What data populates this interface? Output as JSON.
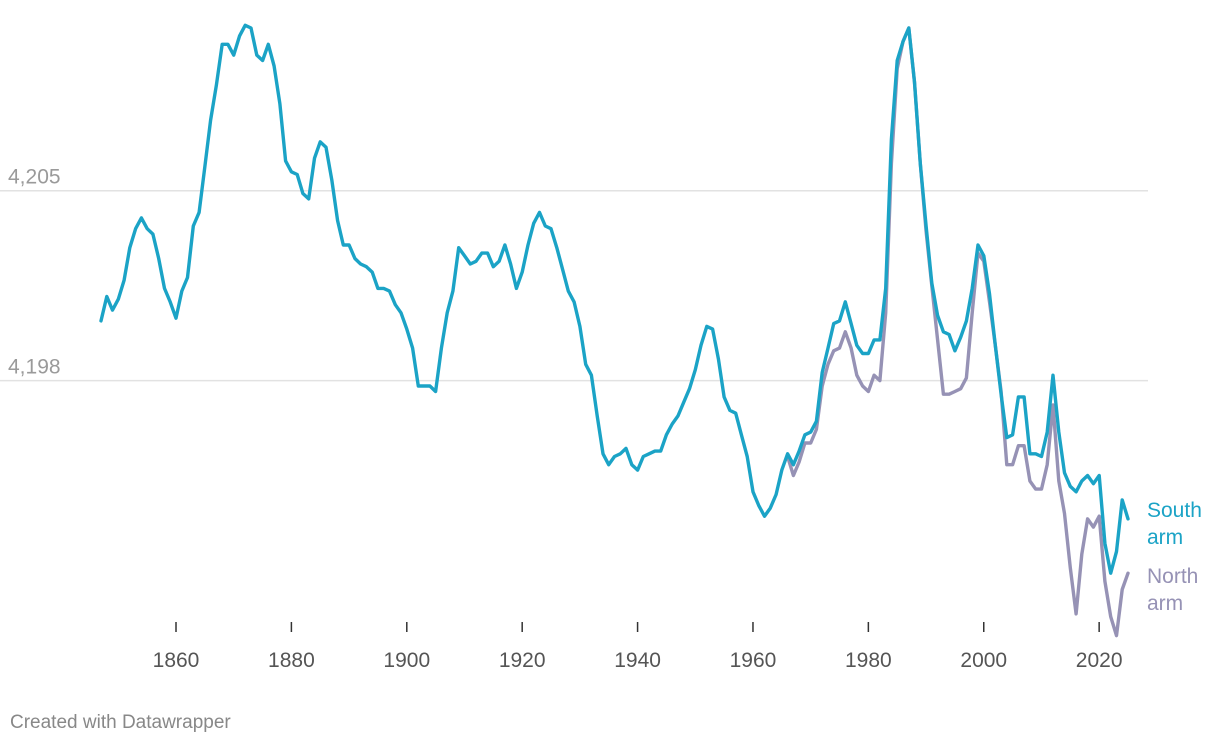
{
  "chart_data": {
    "type": "line",
    "title": "",
    "xlabel": "",
    "ylabel": "",
    "xlim": [
      1847,
      2025
    ],
    "ylim": [
      4189.1,
      4211.0
    ],
    "x_ticks": [
      1860,
      1880,
      1900,
      1920,
      1940,
      1960,
      1980,
      2000,
      2020
    ],
    "y_ticks": [
      4198,
      4205
    ],
    "y_tick_labels": [
      "4,198",
      "4,205"
    ],
    "grid": true,
    "legend": "direct labels at line ends",
    "series": [
      {
        "name": "North arm",
        "label_lines": [
          "North",
          "arm"
        ],
        "color": "#9692b5",
        "points": [
          [
            1966,
            4195.2
          ],
          [
            1967,
            4194.5
          ],
          [
            1968,
            4195.0
          ],
          [
            1969,
            4195.7
          ],
          [
            1970,
            4195.7
          ],
          [
            1971,
            4196.2
          ],
          [
            1972,
            4197.8
          ],
          [
            1973,
            4198.6
          ],
          [
            1974,
            4199.1
          ],
          [
            1975,
            4199.2
          ],
          [
            1976,
            4199.8
          ],
          [
            1977,
            4199.2
          ],
          [
            1978,
            4198.2
          ],
          [
            1979,
            4197.8
          ],
          [
            1980,
            4197.6
          ],
          [
            1981,
            4198.2
          ],
          [
            1982,
            4198.0
          ],
          [
            1983,
            4200.5
          ],
          [
            1984,
            4206.0
          ],
          [
            1985,
            4209.5
          ],
          [
            1986,
            4210.5
          ],
          [
            1987,
            4211.0
          ],
          [
            1988,
            4209.0
          ],
          [
            1989,
            4206.0
          ],
          [
            1990,
            4203.5
          ],
          [
            1991,
            4201.5
          ],
          [
            1992,
            4199.5
          ],
          [
            1993,
            4197.5
          ],
          [
            1994,
            4197.5
          ],
          [
            1995,
            4197.6
          ],
          [
            1996,
            4197.7
          ],
          [
            1997,
            4198.1
          ],
          [
            1998,
            4200.5
          ],
          [
            1999,
            4202.7
          ],
          [
            2000,
            4202.4
          ],
          [
            2001,
            4200.9
          ],
          [
            2002,
            4199.3
          ],
          [
            2003,
            4197.6
          ],
          [
            2004,
            4194.9
          ],
          [
            2005,
            4194.9
          ],
          [
            2006,
            4195.6
          ],
          [
            2007,
            4195.6
          ],
          [
            2008,
            4194.3
          ],
          [
            2009,
            4194.0
          ],
          [
            2010,
            4194.0
          ],
          [
            2011,
            4194.9
          ],
          [
            2012,
            4197.1
          ],
          [
            2013,
            4194.3
          ],
          [
            2014,
            4193.1
          ],
          [
            2015,
            4191.1
          ],
          [
            2016,
            4189.4
          ],
          [
            2017,
            4191.6
          ],
          [
            2018,
            4192.9
          ],
          [
            2019,
            4192.6
          ],
          [
            2020,
            4193.0
          ],
          [
            2021,
            4190.6
          ],
          [
            2022,
            4189.3
          ],
          [
            2023,
            4188.6
          ],
          [
            2024,
            4190.3
          ],
          [
            2025,
            4190.9
          ]
        ]
      },
      {
        "name": "South arm",
        "label_lines": [
          "South",
          "arm"
        ],
        "color": "#1ba3c6",
        "points": [
          [
            1847,
            4200.2
          ],
          [
            1848,
            4201.1
          ],
          [
            1849,
            4200.6
          ],
          [
            1850,
            4201.0
          ],
          [
            1851,
            4201.7
          ],
          [
            1852,
            4202.9
          ],
          [
            1853,
            4203.6
          ],
          [
            1854,
            4204.0
          ],
          [
            1855,
            4203.6
          ],
          [
            1856,
            4203.4
          ],
          [
            1857,
            4202.5
          ],
          [
            1858,
            4201.4
          ],
          [
            1859,
            4200.9
          ],
          [
            1860,
            4200.3
          ],
          [
            1861,
            4201.3
          ],
          [
            1862,
            4201.8
          ],
          [
            1863,
            4203.7
          ],
          [
            1864,
            4204.2
          ],
          [
            1865,
            4205.9
          ],
          [
            1866,
            4207.6
          ],
          [
            1867,
            4208.9
          ],
          [
            1868,
            4210.4
          ],
          [
            1869,
            4210.4
          ],
          [
            1870,
            4210.0
          ],
          [
            1871,
            4210.7
          ],
          [
            1872,
            4211.1
          ],
          [
            1873,
            4211.0
          ],
          [
            1874,
            4210.0
          ],
          [
            1875,
            4209.8
          ],
          [
            1876,
            4210.4
          ],
          [
            1877,
            4209.6
          ],
          [
            1878,
            4208.2
          ],
          [
            1879,
            4206.1
          ],
          [
            1880,
            4205.7
          ],
          [
            1881,
            4205.6
          ],
          [
            1882,
            4204.9
          ],
          [
            1883,
            4204.7
          ],
          [
            1884,
            4206.2
          ],
          [
            1885,
            4206.8
          ],
          [
            1886,
            4206.6
          ],
          [
            1887,
            4205.4
          ],
          [
            1888,
            4203.9
          ],
          [
            1889,
            4203.0
          ],
          [
            1890,
            4203.0
          ],
          [
            1891,
            4202.5
          ],
          [
            1892,
            4202.3
          ],
          [
            1893,
            4202.2
          ],
          [
            1894,
            4202.0
          ],
          [
            1895,
            4201.4
          ],
          [
            1896,
            4201.4
          ],
          [
            1897,
            4201.3
          ],
          [
            1898,
            4200.8
          ],
          [
            1899,
            4200.5
          ],
          [
            1900,
            4199.9
          ],
          [
            1901,
            4199.2
          ],
          [
            1902,
            4197.8
          ],
          [
            1903,
            4197.8
          ],
          [
            1904,
            4197.8
          ],
          [
            1905,
            4197.6
          ],
          [
            1906,
            4199.2
          ],
          [
            1907,
            4200.5
          ],
          [
            1908,
            4201.3
          ],
          [
            1909,
            4202.9
          ],
          [
            1910,
            4202.6
          ],
          [
            1911,
            4202.3
          ],
          [
            1912,
            4202.4
          ],
          [
            1913,
            4202.7
          ],
          [
            1914,
            4202.7
          ],
          [
            1915,
            4202.2
          ],
          [
            1916,
            4202.4
          ],
          [
            1917,
            4203.0
          ],
          [
            1918,
            4202.3
          ],
          [
            1919,
            4201.4
          ],
          [
            1920,
            4202.0
          ],
          [
            1921,
            4203.0
          ],
          [
            1922,
            4203.8
          ],
          [
            1923,
            4204.2
          ],
          [
            1924,
            4203.7
          ],
          [
            1925,
            4203.6
          ],
          [
            1926,
            4202.9
          ],
          [
            1927,
            4202.1
          ],
          [
            1928,
            4201.3
          ],
          [
            1929,
            4200.9
          ],
          [
            1930,
            4200.0
          ],
          [
            1931,
            4198.6
          ],
          [
            1932,
            4198.2
          ],
          [
            1933,
            4196.7
          ],
          [
            1934,
            4195.3
          ],
          [
            1935,
            4194.9
          ],
          [
            1936,
            4195.2
          ],
          [
            1937,
            4195.3
          ],
          [
            1938,
            4195.5
          ],
          [
            1939,
            4194.9
          ],
          [
            1940,
            4194.7
          ],
          [
            1941,
            4195.2
          ],
          [
            1942,
            4195.3
          ],
          [
            1943,
            4195.4
          ],
          [
            1944,
            4195.4
          ],
          [
            1945,
            4196.0
          ],
          [
            1946,
            4196.4
          ],
          [
            1947,
            4196.7
          ],
          [
            1948,
            4197.2
          ],
          [
            1949,
            4197.7
          ],
          [
            1950,
            4198.4
          ],
          [
            1951,
            4199.3
          ],
          [
            1952,
            4200.0
          ],
          [
            1953,
            4199.9
          ],
          [
            1954,
            4198.8
          ],
          [
            1955,
            4197.4
          ],
          [
            1956,
            4196.9
          ],
          [
            1957,
            4196.8
          ],
          [
            1958,
            4196.0
          ],
          [
            1959,
            4195.2
          ],
          [
            1960,
            4193.9
          ],
          [
            1961,
            4193.4
          ],
          [
            1962,
            4193.0
          ],
          [
            1963,
            4193.3
          ],
          [
            1964,
            4193.8
          ],
          [
            1965,
            4194.7
          ],
          [
            1966,
            4195.3
          ],
          [
            1967,
            4194.9
          ],
          [
            1968,
            4195.4
          ],
          [
            1969,
            4196.0
          ],
          [
            1970,
            4196.1
          ],
          [
            1971,
            4196.5
          ],
          [
            1972,
            4198.3
          ],
          [
            1973,
            4199.2
          ],
          [
            1974,
            4200.1
          ],
          [
            1975,
            4200.2
          ],
          [
            1976,
            4200.9
          ],
          [
            1977,
            4200.1
          ],
          [
            1978,
            4199.3
          ],
          [
            1979,
            4199.0
          ],
          [
            1980,
            4199.0
          ],
          [
            1981,
            4199.5
          ],
          [
            1982,
            4199.5
          ],
          [
            1983,
            4201.4
          ],
          [
            1984,
            4206.9
          ],
          [
            1985,
            4209.8
          ],
          [
            1986,
            4210.5
          ],
          [
            1987,
            4211.0
          ],
          [
            1988,
            4209.0
          ],
          [
            1989,
            4206.0
          ],
          [
            1990,
            4203.7
          ],
          [
            1991,
            4201.6
          ],
          [
            1992,
            4200.4
          ],
          [
            1993,
            4199.8
          ],
          [
            1994,
            4199.7
          ],
          [
            1995,
            4199.1
          ],
          [
            1996,
            4199.6
          ],
          [
            1997,
            4200.2
          ],
          [
            1998,
            4201.4
          ],
          [
            1999,
            4203.0
          ],
          [
            2000,
            4202.6
          ],
          [
            2001,
            4201.2
          ],
          [
            2002,
            4199.3
          ],
          [
            2003,
            4197.5
          ],
          [
            2004,
            4195.9
          ],
          [
            2005,
            4196.0
          ],
          [
            2006,
            4197.4
          ],
          [
            2007,
            4197.4
          ],
          [
            2008,
            4195.3
          ],
          [
            2009,
            4195.3
          ],
          [
            2010,
            4195.2
          ],
          [
            2011,
            4196.1
          ],
          [
            2012,
            4198.2
          ],
          [
            2013,
            4196.1
          ],
          [
            2014,
            4194.6
          ],
          [
            2015,
            4194.1
          ],
          [
            2016,
            4193.9
          ],
          [
            2017,
            4194.3
          ],
          [
            2018,
            4194.5
          ],
          [
            2019,
            4194.2
          ],
          [
            2020,
            4194.5
          ],
          [
            2021,
            4192.0
          ],
          [
            2022,
            4190.9
          ],
          [
            2023,
            4191.7
          ],
          [
            2024,
            4193.6
          ],
          [
            2025,
            4192.9
          ]
        ]
      }
    ]
  },
  "footer": {
    "credit": "Created with Datawrapper"
  }
}
